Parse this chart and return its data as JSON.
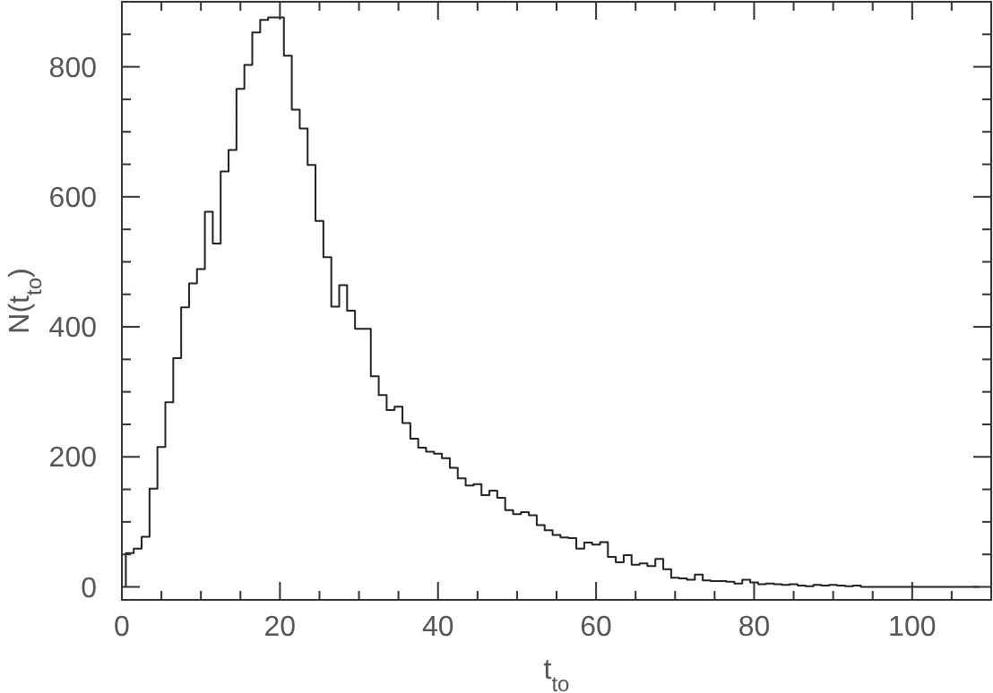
{
  "chart_data": {
    "type": "histogram",
    "xlabel": "t$_{to}$",
    "ylabel": "N(t$_{to}$)",
    "color": "#222222",
    "bins": [
      0.5,
      1.5,
      2.5,
      3.5,
      4.5,
      5.5,
      6.5,
      7.5,
      8.5,
      9.5,
      10.5,
      11.5,
      12.5,
      13.5,
      14.5,
      15.5,
      16.5,
      17.5,
      18.5,
      19.5,
      20.5,
      21.5,
      22.5,
      23.5,
      24.5,
      25.5,
      26.5,
      27.5,
      28.5,
      29.5,
      30.5,
      31.5,
      32.5,
      33.5,
      34.5,
      35.5,
      36.5,
      37.5,
      38.5,
      39.5,
      40.5,
      41.5,
      42.5,
      43.5,
      44.5,
      45.5,
      46.5,
      47.5,
      48.5,
      49.5,
      50.5,
      51.5,
      52.5,
      53.5,
      54.5,
      55.5,
      56.5,
      57.5,
      58.5,
      59.5,
      60.5,
      61.5,
      62.5,
      63.5,
      64.5,
      65.5,
      66.5,
      67.5,
      68.5,
      69.5,
      70.5,
      71.5,
      72.5,
      73.5,
      74.5,
      75.5,
      76.5,
      77.5,
      78.5,
      79.5,
      80.5,
      81.5,
      82.5,
      83.5,
      84.5,
      85.5,
      86.5,
      87.5,
      88.5,
      89.5,
      90.5,
      91.5,
      92.5,
      93.5,
      94.5,
      95.5,
      96.5,
      97.5,
      98.5,
      99.5,
      100.5,
      101.5,
      102.5,
      103.5,
      104.5,
      105.5,
      106.5,
      107.5,
      108.5
    ],
    "values": [
      52,
      59,
      77,
      151,
      215,
      284,
      352,
      430,
      467,
      489,
      577,
      528,
      639,
      672,
      766,
      803,
      853,
      872,
      876,
      876,
      817,
      734,
      705,
      649,
      563,
      507,
      431,
      464,
      425,
      397,
      397,
      324,
      295,
      272,
      277,
      252,
      228,
      214,
      208,
      205,
      198,
      183,
      167,
      156,
      158,
      141,
      148,
      137,
      118,
      112,
      115,
      110,
      95,
      87,
      80,
      76,
      75,
      59,
      68,
      65,
      69,
      46,
      38,
      49,
      34,
      36,
      32,
      43,
      27,
      14,
      13,
      11,
      19,
      10,
      9,
      9,
      8,
      5,
      11,
      7,
      4,
      5,
      4,
      3,
      4,
      2,
      1,
      3,
      2,
      3,
      2,
      1,
      2,
      0,
      0,
      0,
      0,
      0,
      0,
      0,
      0,
      0,
      0,
      0,
      0,
      0,
      0,
      0
    ],
    "xlim": [
      0,
      110
    ],
    "ylim": [
      -20,
      900
    ],
    "xticks": [
      0,
      {
        "value": 5,
        "label": null
      },
      {
        "value": 10,
        "label": null
      },
      {
        "value": 15,
        "label": null
      },
      20,
      {
        "value": 25,
        "label": null
      },
      {
        "value": 30,
        "label": null
      },
      {
        "value": 35,
        "label": null
      },
      40,
      {
        "value": 45,
        "label": null
      },
      {
        "value": 50,
        "label": null
      },
      {
        "value": 55,
        "label": null
      },
      60,
      {
        "value": 65,
        "label": null
      },
      {
        "value": 70,
        "label": null
      },
      {
        "value": 75,
        "label": null
      },
      80,
      {
        "value": 85,
        "label": null
      },
      {
        "value": 90,
        "label": null
      },
      {
        "value": 95,
        "label": null
      },
      100,
      {
        "value": 105,
        "label": null
      }
    ],
    "yticks": [
      0,
      {
        "value": 50,
        "label": null
      },
      {
        "value": 100,
        "label": null
      },
      {
        "value": 150,
        "label": null
      },
      200,
      {
        "value": 250,
        "label": null
      },
      {
        "value": 300,
        "label": null
      },
      {
        "value": 350,
        "label": null
      },
      400,
      {
        "value": 450,
        "label": null
      },
      {
        "value": 500,
        "label": null
      },
      {
        "value": 550,
        "label": null
      },
      600,
      {
        "value": 650,
        "label": null
      },
      {
        "value": 700,
        "label": null
      },
      {
        "value": 750,
        "label": null
      },
      800,
      {
        "value": 850,
        "label": null
      }
    ],
    "grid": false
  }
}
